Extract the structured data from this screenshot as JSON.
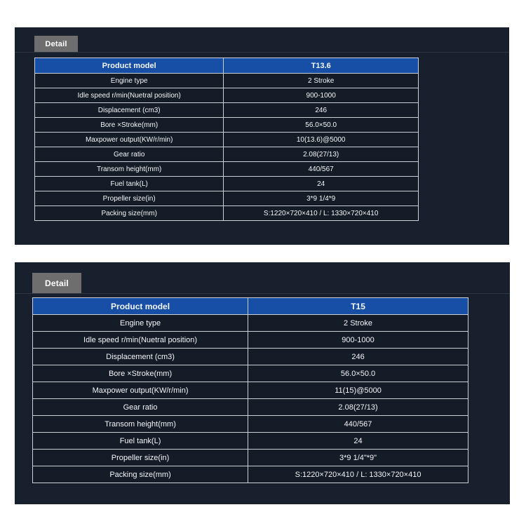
{
  "colors": {
    "panel_background": "#18202d",
    "header_blue": "#164fa5",
    "tab_gray": "#6e6e6e",
    "table_border": "#ccd1d7",
    "text": "#ffffff"
  },
  "sections": [
    {
      "tab_label": "Detail",
      "table": {
        "header_label": "Product model",
        "header_value": "T13.6",
        "rows": [
          {
            "label": "Engine type",
            "value": "2 Stroke"
          },
          {
            "label": "Idle speed r/min(Nuetral position)",
            "value": "900-1000"
          },
          {
            "label": "Displacement (cm3)",
            "value": "246"
          },
          {
            "label": "Bore ×Stroke(mm)",
            "value": "56.0×50.0"
          },
          {
            "label": "Maxpower output(KW/r/min)",
            "value": "10(13.6)@5000"
          },
          {
            "label": "Gear ratio",
            "value": "2.08(27/13)"
          },
          {
            "label": "Transom height(mm)",
            "value": "440/567"
          },
          {
            "label": "Fuel tank(L)",
            "value": "24"
          },
          {
            "label": "Propeller size(in)",
            "value": "3*9 1/4*9"
          },
          {
            "label": "Packing size(mm)",
            "value": "S:1220×720×410 / L: 1330×720×410"
          }
        ]
      }
    },
    {
      "tab_label": "Detail",
      "table": {
        "header_label": "Product model",
        "header_value": "T15",
        "rows": [
          {
            "label": "Engine type",
            "value": "2 Stroke"
          },
          {
            "label": "Idle speed r/min(Nuetral position)",
            "value": "900-1000"
          },
          {
            "label": "Displacement (cm3)",
            "value": "246"
          },
          {
            "label": "Bore ×Stroke(mm)",
            "value": "56.0×50.0"
          },
          {
            "label": "Maxpower output(KW/r/min)",
            "value": "11(15)@5000"
          },
          {
            "label": "Gear ratio",
            "value": "2.08(27/13)"
          },
          {
            "label": "Transom height(mm)",
            "value": "440/567"
          },
          {
            "label": "Fuel tank(L)",
            "value": "24"
          },
          {
            "label": "Propeller size(in)",
            "value": "3*9 1/4\"*9\""
          },
          {
            "label": "Packing size(mm)",
            "value": "S:1220×720×410 / L: 1330×720×410"
          }
        ]
      }
    }
  ]
}
